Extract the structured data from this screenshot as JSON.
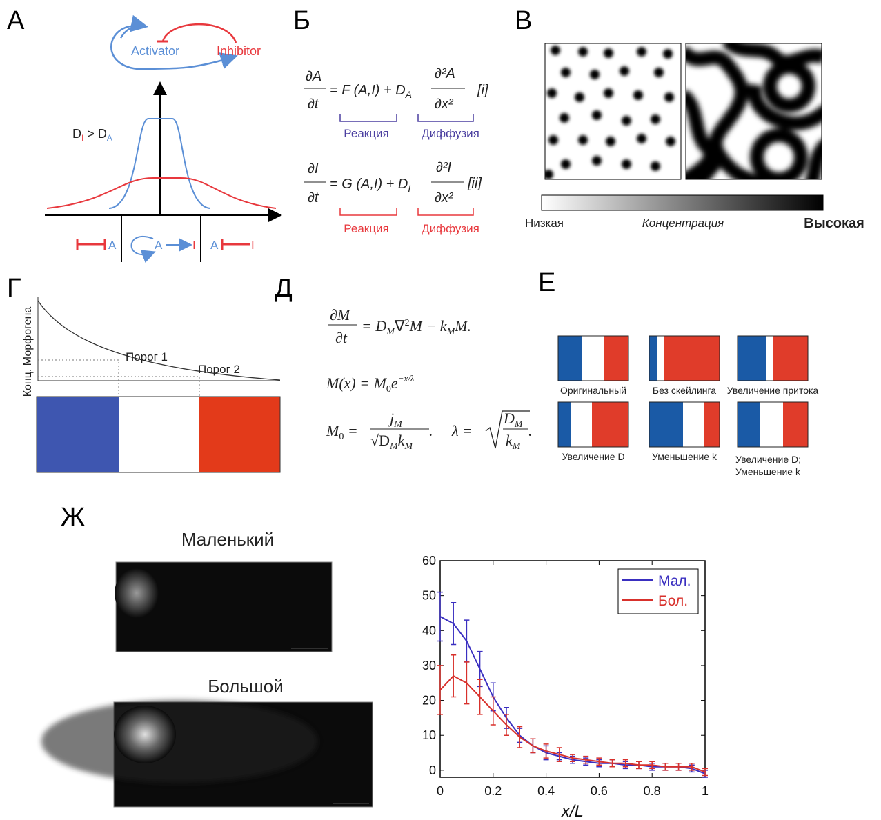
{
  "panel_a": {
    "label": "А",
    "activator": "Activator",
    "inhibitor": "Inhibitor",
    "condition": [
      "D",
      "I",
      " > D",
      "A"
    ],
    "bottom": [
      "A",
      "A",
      "I",
      "A",
      "I"
    ]
  },
  "panel_b": {
    "label": "Б",
    "eq1": {
      "num": "∂A",
      "den": "∂t",
      "rhs": [
        "= F (A,I) + D",
        "A"
      ],
      "frac_num": "∂²A",
      "frac_den": "∂x²",
      "tag": "[i]",
      "reaction": "Реакция",
      "diffusion": "Диффузия"
    },
    "eq2": {
      "num": "∂I",
      "den": "∂t",
      "rhs": [
        "= G (A,I) + D",
        "I"
      ],
      "frac_num": "∂²I",
      "frac_den": "∂x²",
      "tag": "[ii]",
      "reaction": "Реакция",
      "diffusion": "Диффузия"
    }
  },
  "panel_v": {
    "label": "В",
    "low": "Низкая",
    "axis": "Концентрация",
    "high": "Высокая"
  },
  "panel_g": {
    "label": "Г",
    "ylabel": "Конц. Морфогена",
    "threshold1": "Порог 1",
    "threshold2": "Порог 2"
  },
  "panel_d": {
    "label": "Д",
    "eq1": {
      "num": "∂M",
      "den": "∂t",
      "rhs": [
        "= D",
        "M",
        "∇",
        "2",
        "M − k",
        "M",
        "M."
      ]
    },
    "eq2": [
      "M(x) = M",
      "0",
      "e",
      "−x/λ"
    ],
    "eq3": {
      "lhs": [
        "M",
        "0",
        " ="
      ],
      "num": [
        "j",
        "M"
      ],
      "den": [
        "√D",
        "M",
        "k",
        "M"
      ],
      "mid": ".     λ =",
      "num2": [
        "D",
        "M"
      ],
      "den2": [
        "k",
        "M"
      ],
      "end": "."
    }
  },
  "panel_e": {
    "label": "Е",
    "items": [
      "Оригинальный",
      "Без скейлинга",
      "Увеличение притока",
      "Увеличение D",
      "Уменьшение k",
      [
        "Увеличение D;",
        "Уменьшение k"
      ]
    ]
  },
  "panel_zh": {
    "label": "Ж",
    "small": "Маленький",
    "large": "Большой"
  },
  "chart_data": {
    "type": "line",
    "xlabel": "x/L",
    "x": [
      0,
      0.05,
      0.1,
      0.15,
      0.2,
      0.25,
      0.3,
      0.35,
      0.4,
      0.45,
      0.5,
      0.55,
      0.6,
      0.65,
      0.7,
      0.75,
      0.8,
      0.85,
      0.9,
      0.95,
      1
    ],
    "series": [
      {
        "name": "Мал.",
        "color": "#3a2fc0",
        "values": [
          44,
          42,
          37,
          29,
          21,
          15,
          10,
          7,
          5,
          4,
          3,
          2.5,
          2,
          2,
          1.5,
          1.5,
          1,
          1,
          1,
          0.5,
          -1
        ],
        "errors": [
          7,
          6,
          6,
          5,
          4,
          3,
          2,
          2,
          2,
          1,
          1,
          1,
          1,
          1,
          1,
          1,
          1,
          1,
          1,
          1,
          1
        ]
      },
      {
        "name": "Бол.",
        "color": "#d8312c",
        "values": [
          23,
          27,
          25,
          21,
          17,
          13,
          9.5,
          7,
          5.5,
          4.5,
          3.5,
          3,
          2.5,
          2,
          2,
          1.5,
          1.5,
          1,
          1,
          1,
          -0.5
        ],
        "errors": [
          7,
          6,
          6,
          5,
          4,
          3,
          3,
          2,
          2,
          2,
          1,
          1,
          1,
          1,
          1,
          1,
          1,
          1,
          1,
          1,
          1
        ]
      }
    ],
    "xlim": [
      0,
      1
    ],
    "ylim": [
      -2,
      60
    ],
    "xticks": [
      0,
      0.2,
      0.4,
      0.6,
      0.8,
      1
    ],
    "yticks": [
      0,
      10,
      20,
      30,
      40,
      50,
      60
    ],
    "legend": "upper right"
  }
}
